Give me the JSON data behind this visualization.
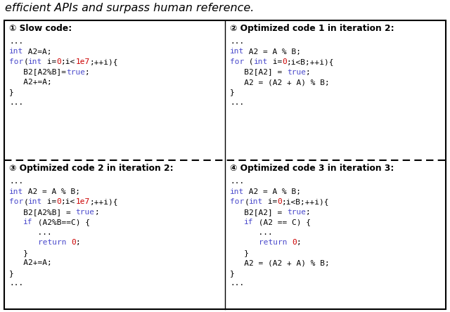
{
  "fig_width": 6.4,
  "fig_height": 4.44,
  "bg_color": "#ffffff",
  "border_color": "#000000",
  "blue_color": "#4b4bcc",
  "red_color": "#cc0000",
  "black_color": "#000000",
  "header_text": "efficient APIs and surpass human reference.",
  "header_fontsize": 11.5,
  "code_fontsize": 8.0,
  "title_fontsize": 8.8,
  "panels": [
    {
      "id": 1,
      "title": "① Slow code:",
      "col": 0,
      "row": 0,
      "lines": [
        [
          [
            "...",
            "#000000"
          ]
        ],
        [
          [
            "int",
            "#4b4bcc"
          ],
          [
            " A2=A;",
            "#000000"
          ]
        ],
        [
          [
            "for",
            "#4b4bcc"
          ],
          [
            "(",
            "#000000"
          ],
          [
            "int",
            "#4b4bcc"
          ],
          [
            " i=",
            "#000000"
          ],
          [
            "0",
            "#cc0000"
          ],
          [
            ";i<",
            "#000000"
          ],
          [
            "1e7",
            "#cc0000"
          ],
          [
            ";++i){",
            "#000000"
          ]
        ],
        [
          [
            "   B2[A2%B]=",
            "#000000"
          ],
          [
            "true",
            "#4b4bcc"
          ],
          [
            ";",
            "#000000"
          ]
        ],
        [
          [
            "   A2+=A;",
            "#000000"
          ]
        ],
        [
          [
            "}",
            "#000000"
          ]
        ],
        [
          [
            "...",
            "#000000"
          ]
        ]
      ]
    },
    {
      "id": 2,
      "title": "② Optimized code 1 in iteration 2:",
      "col": 1,
      "row": 0,
      "lines": [
        [
          [
            "...",
            "#000000"
          ]
        ],
        [
          [
            "int",
            "#4b4bcc"
          ],
          [
            " A2 = A % B;",
            "#000000"
          ]
        ],
        [
          [
            "for",
            "#4b4bcc"
          ],
          [
            " (",
            "#000000"
          ],
          [
            "int",
            "#4b4bcc"
          ],
          [
            " i=",
            "#000000"
          ],
          [
            "0",
            "#cc0000"
          ],
          [
            ";i<B;++i){",
            "#000000"
          ]
        ],
        [
          [
            "   B2[A2] = ",
            "#000000"
          ],
          [
            "true",
            "#4b4bcc"
          ],
          [
            ";",
            "#000000"
          ]
        ],
        [
          [
            "   A2 = (A2 + A) % B;",
            "#000000"
          ]
        ],
        [
          [
            "}",
            "#000000"
          ]
        ],
        [
          [
            "...",
            "#000000"
          ]
        ]
      ]
    },
    {
      "id": 3,
      "title": "③ Optimized code 2 in iteration 2:",
      "col": 0,
      "row": 1,
      "lines": [
        [
          [
            "...",
            "#000000"
          ]
        ],
        [
          [
            "int",
            "#4b4bcc"
          ],
          [
            " A2 = A % B;",
            "#000000"
          ]
        ],
        [
          [
            "for",
            "#4b4bcc"
          ],
          [
            "(",
            "#000000"
          ],
          [
            "int",
            "#4b4bcc"
          ],
          [
            " i=",
            "#000000"
          ],
          [
            "0",
            "#cc0000"
          ],
          [
            ";i<",
            "#000000"
          ],
          [
            "1e7",
            "#cc0000"
          ],
          [
            ";++i){",
            "#000000"
          ]
        ],
        [
          [
            "   B2[A2%B] = ",
            "#000000"
          ],
          [
            "true",
            "#4b4bcc"
          ],
          [
            ";",
            "#000000"
          ]
        ],
        [
          [
            "   ",
            "#000000"
          ],
          [
            "if",
            "#4b4bcc"
          ],
          [
            " (A2%B==C) {",
            "#000000"
          ]
        ],
        [
          [
            "      ...",
            "#000000"
          ]
        ],
        [
          [
            "      ",
            "#000000"
          ],
          [
            "return",
            "#4b4bcc"
          ],
          [
            " ",
            "#000000"
          ],
          [
            "0",
            "#cc0000"
          ],
          [
            ";",
            "#000000"
          ]
        ],
        [
          [
            "   }",
            "#000000"
          ]
        ],
        [
          [
            "   A2+=A;",
            "#000000"
          ]
        ],
        [
          [
            "}",
            "#000000"
          ]
        ],
        [
          [
            "...",
            "#000000"
          ]
        ]
      ]
    },
    {
      "id": 4,
      "title": "④ Optimized code 3 in iteration 3:",
      "col": 1,
      "row": 1,
      "lines": [
        [
          [
            "...",
            "#000000"
          ]
        ],
        [
          [
            "int",
            "#4b4bcc"
          ],
          [
            " A2 = A % B;",
            "#000000"
          ]
        ],
        [
          [
            "for",
            "#4b4bcc"
          ],
          [
            "(",
            "#000000"
          ],
          [
            "int",
            "#4b4bcc"
          ],
          [
            " i=",
            "#000000"
          ],
          [
            "0",
            "#cc0000"
          ],
          [
            ";i<B;++i){",
            "#000000"
          ]
        ],
        [
          [
            "   B2[A2] = ",
            "#000000"
          ],
          [
            "true",
            "#4b4bcc"
          ],
          [
            ";",
            "#000000"
          ]
        ],
        [
          [
            "   ",
            "#000000"
          ],
          [
            "if",
            "#4b4bcc"
          ],
          [
            " (A2 == C) {",
            "#000000"
          ]
        ],
        [
          [
            "      ...",
            "#000000"
          ]
        ],
        [
          [
            "      ",
            "#000000"
          ],
          [
            "return",
            "#4b4bcc"
          ],
          [
            " ",
            "#000000"
          ],
          [
            "0",
            "#cc0000"
          ],
          [
            ";",
            "#000000"
          ]
        ],
        [
          [
            "   }",
            "#000000"
          ]
        ],
        [
          [
            "   A2 = (A2 + A) % B;",
            "#000000"
          ]
        ],
        [
          [
            "}",
            "#000000"
          ]
        ],
        [
          [
            "...",
            "#000000"
          ]
        ]
      ]
    }
  ]
}
